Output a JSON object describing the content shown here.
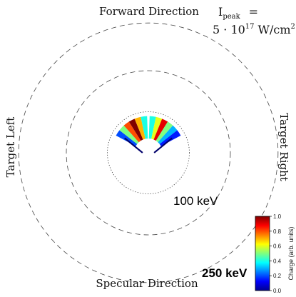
{
  "chart_data": {
    "type": "polar-heatmap",
    "direction_labels": {
      "top": "Forward Direction",
      "bottom": "Specular Direction",
      "left": "Target Left",
      "right": "Target Right"
    },
    "intensity": {
      "line1_symbol": "I",
      "line1_subscript": "peak",
      "line1_operator": "=",
      "line2_prefix": "5 · 10",
      "line2_exponent": "17",
      "line2_unit": "W/cm",
      "line2_unit_exponent": "2"
    },
    "rings": [
      {
        "label": "",
        "energy_keV": 25,
        "style": "dotted"
      },
      {
        "label": "100 keV",
        "energy_keV": 100,
        "style": "dashed"
      },
      {
        "label": "250 keV",
        "energy_keV": 250,
        "style": "dashed"
      }
    ],
    "colorbar": {
      "label": "Charge (arb. units)",
      "min": 0.0,
      "max": 1.0,
      "ticks": [
        "0.0",
        "0.2",
        "0.4",
        "0.6",
        "0.8",
        "1.0"
      ],
      "colormap": "jet"
    },
    "emission_lobes": [
      {
        "name": "left-lobe",
        "angle_start_deg": -62,
        "angle_end_deg": -2,
        "r_inner_keV": 3,
        "r_outer_keV": 20,
        "charge": [
          0.2,
          0.5,
          0.8,
          1.0,
          0.7,
          0.4
        ]
      },
      {
        "name": "right-lobe",
        "angle_start_deg": 2,
        "angle_end_deg": 62,
        "r_inner_keV": 3,
        "r_outer_keV": 20,
        "charge": [
          0.4,
          0.6,
          0.9,
          0.5,
          0.3,
          0.15
        ]
      }
    ]
  }
}
